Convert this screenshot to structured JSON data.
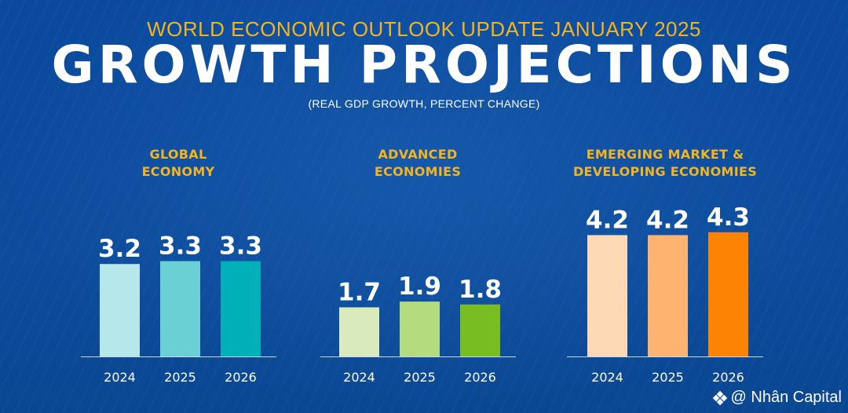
{
  "header": {
    "subtitle": "WORLD ECONOMIC OUTLOOK UPDATE JANUARY 2025",
    "title": "GROWTH PROJECTIONS",
    "units": "(REAL GDP GROWTH, PERCENT CHANGE)"
  },
  "chart_data": [
    {
      "type": "bar",
      "title_lines": [
        "GLOBAL",
        "ECONOMY"
      ],
      "categories": [
        "2024",
        "2025",
        "2026"
      ],
      "values": [
        3.2,
        3.3,
        3.3
      ],
      "colors": [
        "#b6e7ea",
        "#6ad0d3",
        "#00b0b8"
      ]
    },
    {
      "type": "bar",
      "title_lines": [
        "ADVANCED",
        "ECONOMIES"
      ],
      "categories": [
        "2024",
        "2025",
        "2026"
      ],
      "values": [
        1.7,
        1.9,
        1.8
      ],
      "colors": [
        "#d9ebbd",
        "#b4dc7f",
        "#78bd21"
      ]
    },
    {
      "type": "bar",
      "title_lines": [
        "EMERGING MARKET &",
        "DEVELOPING ECONOMIES"
      ],
      "categories": [
        "2024",
        "2025",
        "2026"
      ],
      "values": [
        4.2,
        4.2,
        4.3
      ],
      "colors": [
        "#fdd9b5",
        "#fdb470",
        "#fc8303"
      ]
    }
  ],
  "watermark": {
    "text": "@ Nhân Capital",
    "icon": "diamond-logo-icon"
  }
}
